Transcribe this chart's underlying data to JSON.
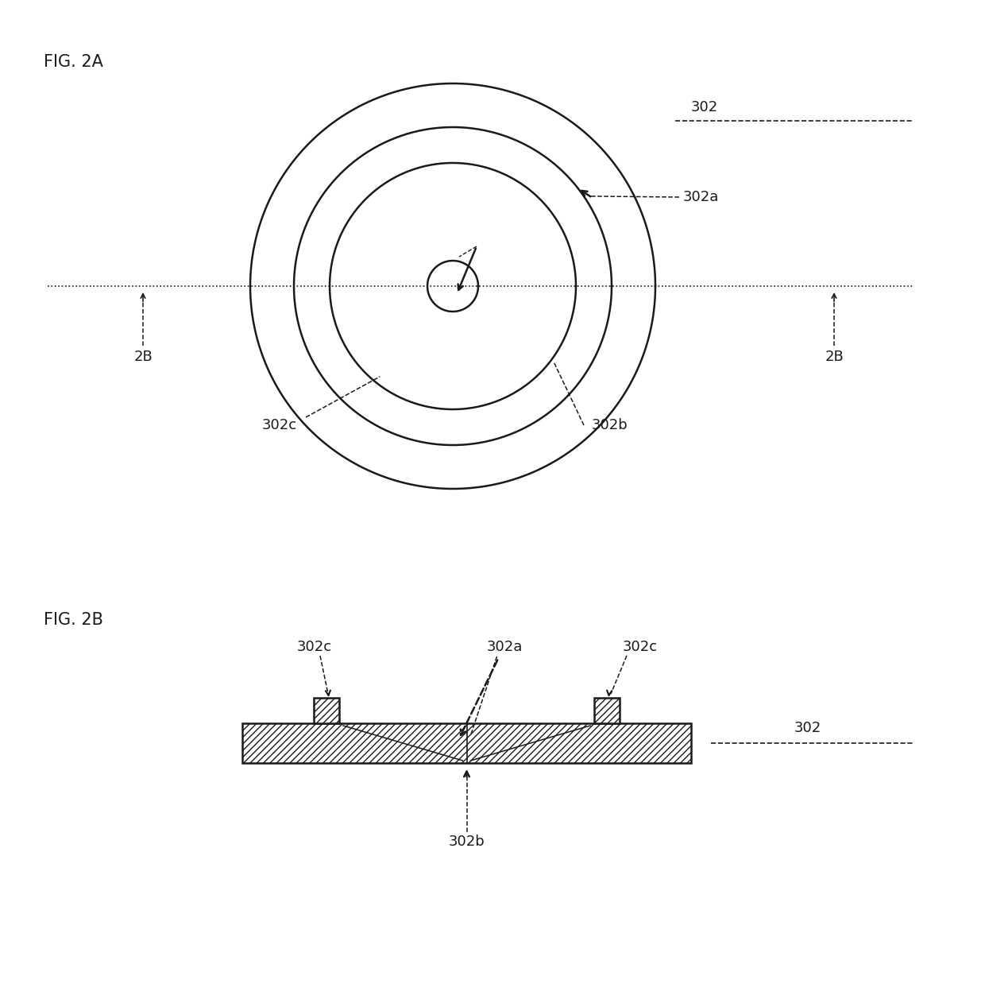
{
  "fig_title_2a": "FIG. 2A",
  "fig_title_2b": "FIG. 2B",
  "label_302": "302",
  "label_302a": "302a",
  "label_302b": "302b",
  "label_302c": "302c",
  "label_2B": "2B",
  "bg_color": "#ffffff",
  "line_color": "#1a1a1a",
  "font_size_title": 15,
  "font_size_label": 13
}
